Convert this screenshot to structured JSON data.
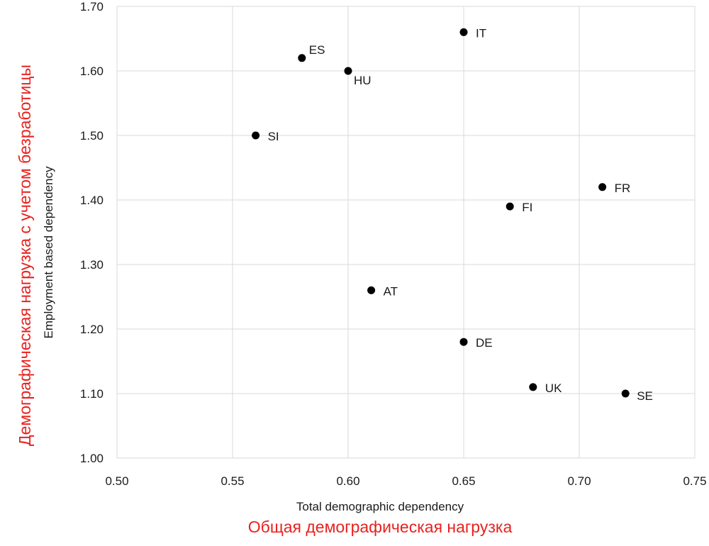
{
  "colors": {
    "grid": "#d9d9d9",
    "points": "#000000",
    "annotation": "#e8221f"
  },
  "chart_data": {
    "type": "scatter",
    "xlabel": "Total demographic dependency",
    "ylabel": "Employment based dependency",
    "xlabel_ru": "Общая демографическая нагрузка",
    "ylabel_ru": "Демографическая нагрузка с учетом безработицы",
    "xlim": [
      0.5,
      0.75
    ],
    "ylim": [
      1.0,
      1.7
    ],
    "x_ticks": [
      "0.50",
      "0.55",
      "0.60",
      "0.65",
      "0.70",
      "0.75"
    ],
    "y_ticks": [
      "1.00",
      "1.10",
      "1.20",
      "1.30",
      "1.40",
      "1.50",
      "1.60",
      "1.70"
    ],
    "grid": true,
    "legend": "none",
    "points": [
      {
        "label": "IT",
        "x": 0.65,
        "y": 1.66
      },
      {
        "label": "ES",
        "x": 0.58,
        "y": 1.62
      },
      {
        "label": "HU",
        "x": 0.6,
        "y": 1.6
      },
      {
        "label": "SI",
        "x": 0.56,
        "y": 1.5
      },
      {
        "label": "FR",
        "x": 0.71,
        "y": 1.42
      },
      {
        "label": "FI",
        "x": 0.67,
        "y": 1.39
      },
      {
        "label": "AT",
        "x": 0.61,
        "y": 1.26
      },
      {
        "label": "DE",
        "x": 0.65,
        "y": 1.18
      },
      {
        "label": "UK",
        "x": 0.68,
        "y": 1.11
      },
      {
        "label": "SE",
        "x": 0.72,
        "y": 1.1
      }
    ]
  }
}
